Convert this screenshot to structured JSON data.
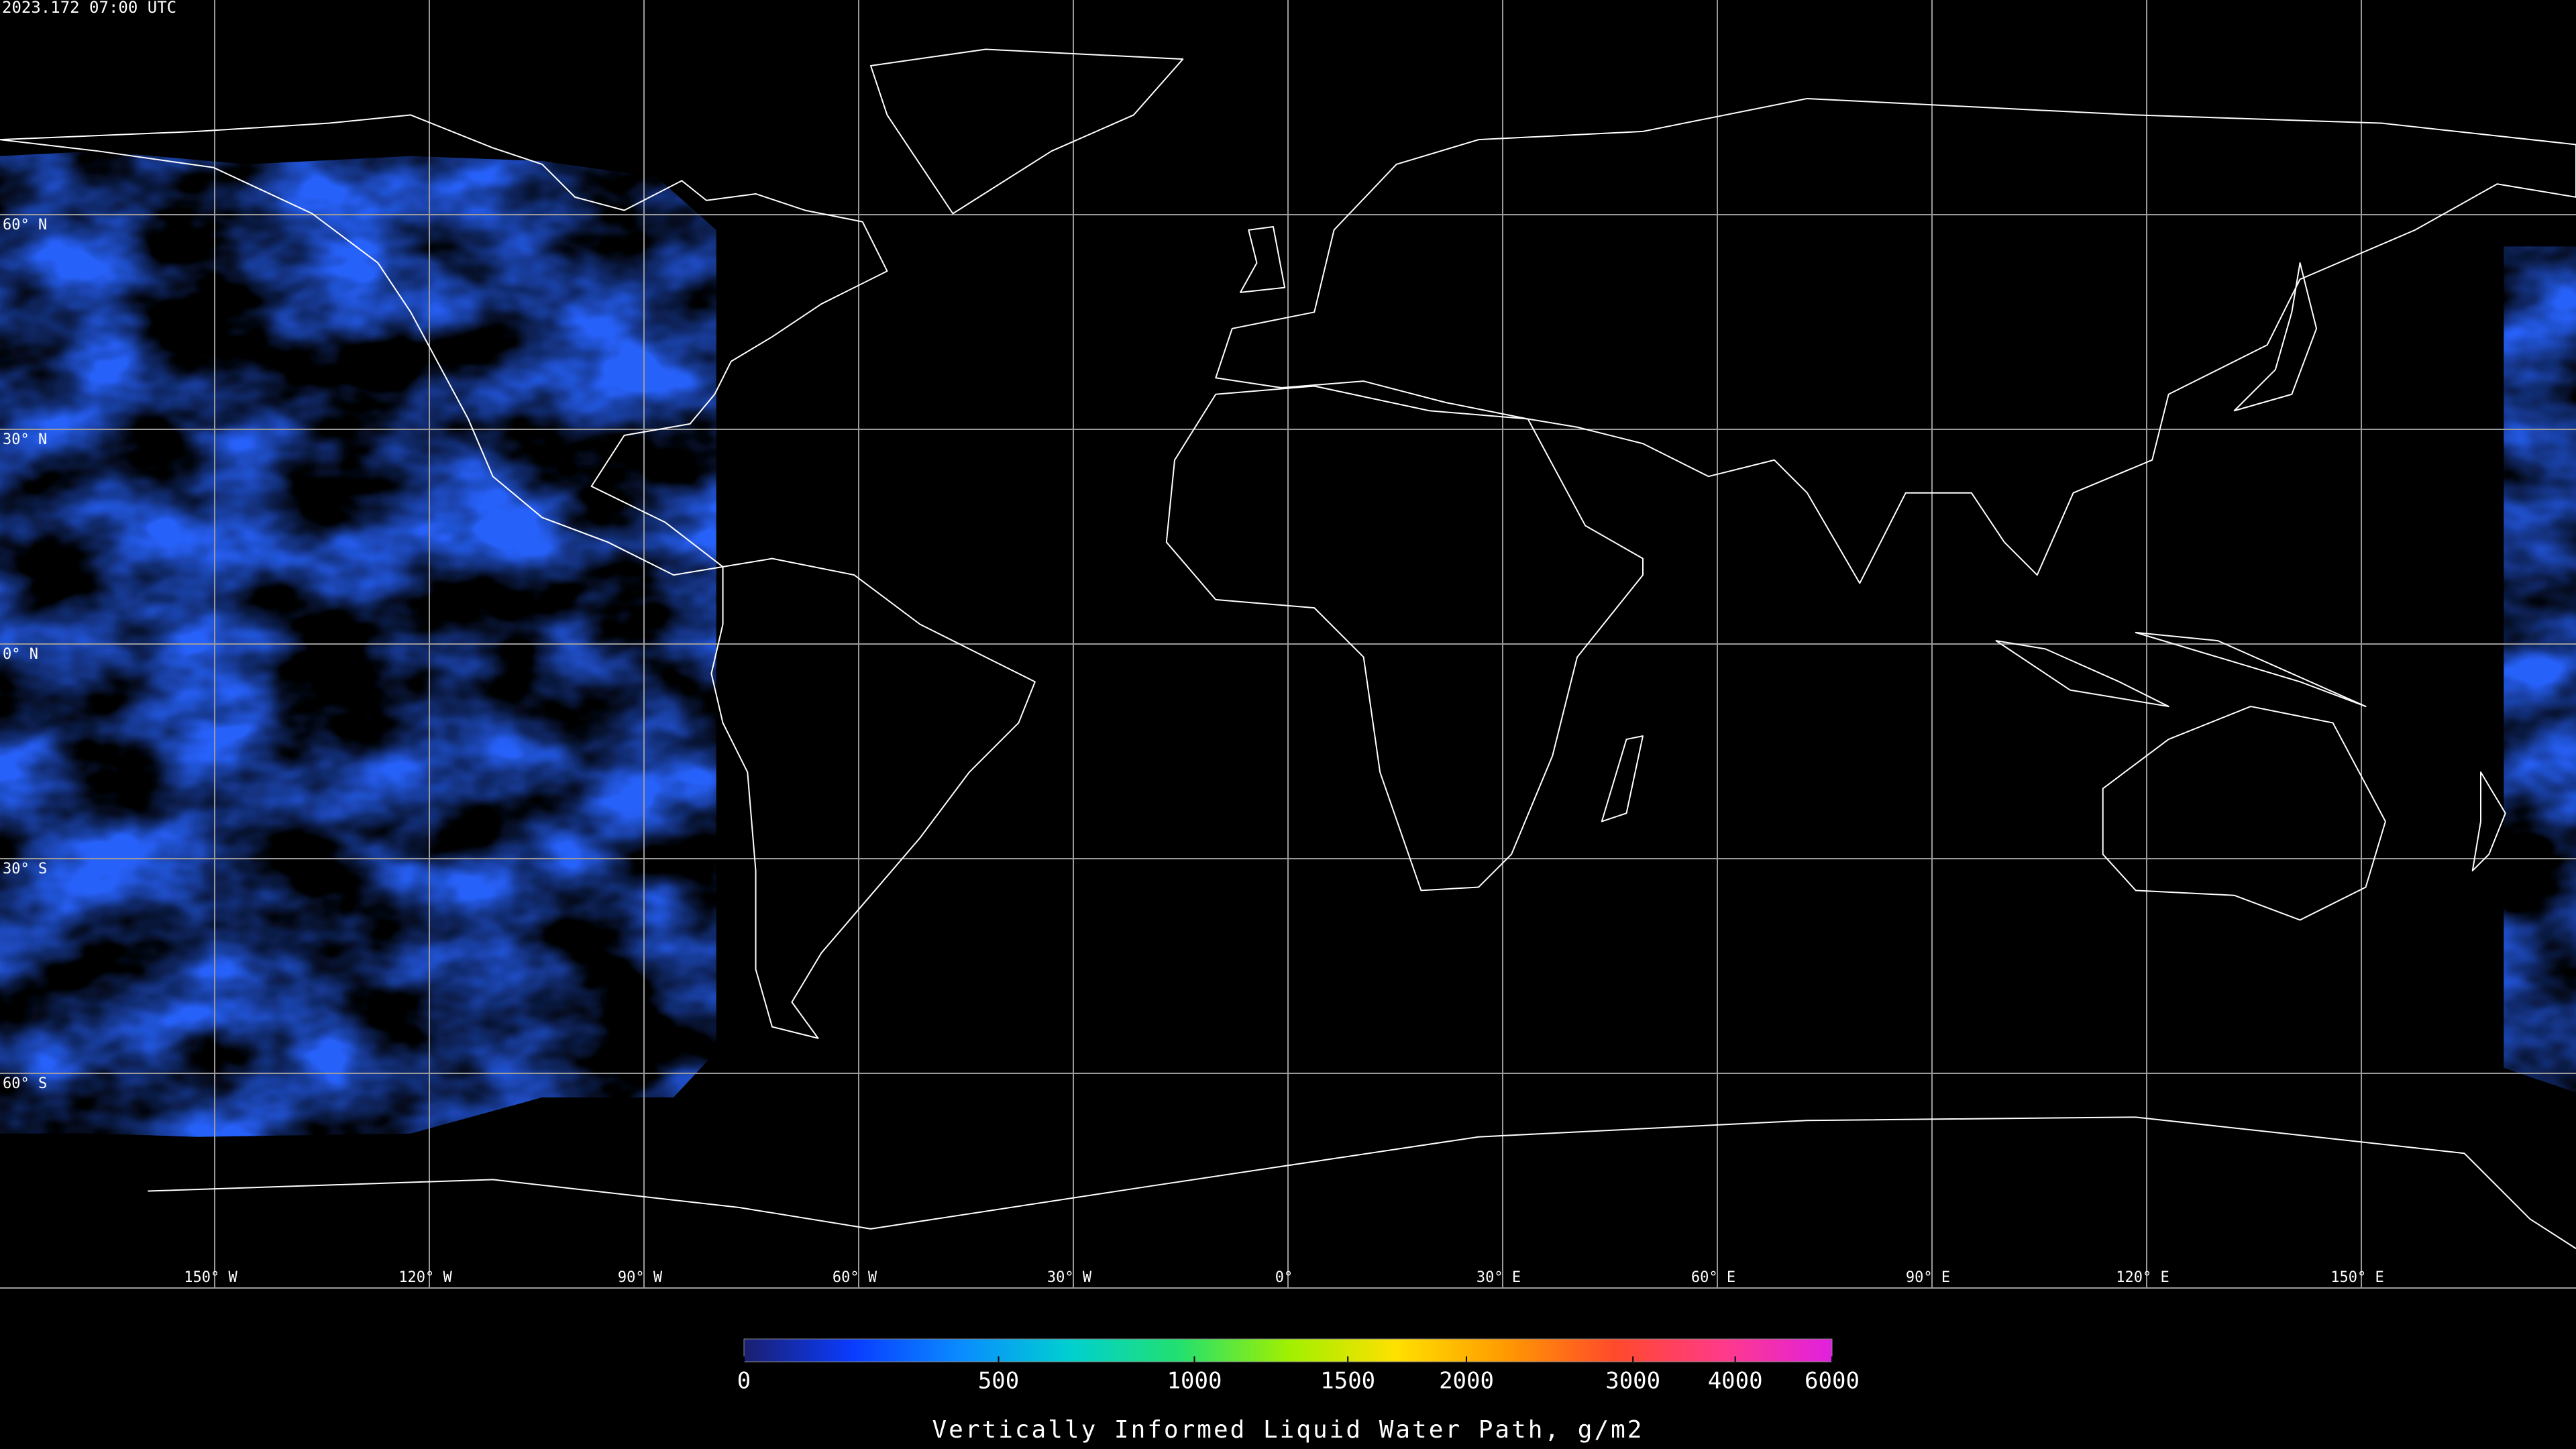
{
  "timestamp": "2023.172 07:00 UTC",
  "map": {
    "lat_labels": [
      "60° N",
      "30° N",
      "0° N",
      "30° S",
      "60° S"
    ],
    "lon_labels": [
      "150° W",
      "120° W",
      "90° W",
      "60° W",
      "30° W",
      "0°",
      "30° E",
      "60° E",
      "90° E",
      "120° E",
      "150° E"
    ]
  },
  "colorbar": {
    "label": "Vertically Informed Liquid Water Path, g/m2",
    "range": [
      0,
      6000
    ],
    "ticks": [
      0,
      500,
      1000,
      1500,
      2000,
      3000,
      4000,
      6000
    ],
    "colors": [
      "#1b1f6e",
      "#0a3cff",
      "#0a8cff",
      "#00d0d0",
      "#22e070",
      "#a0f000",
      "#ffe000",
      "#ff9a00",
      "#ff4a2a",
      "#ff3a8a",
      "#e020e0"
    ]
  }
}
